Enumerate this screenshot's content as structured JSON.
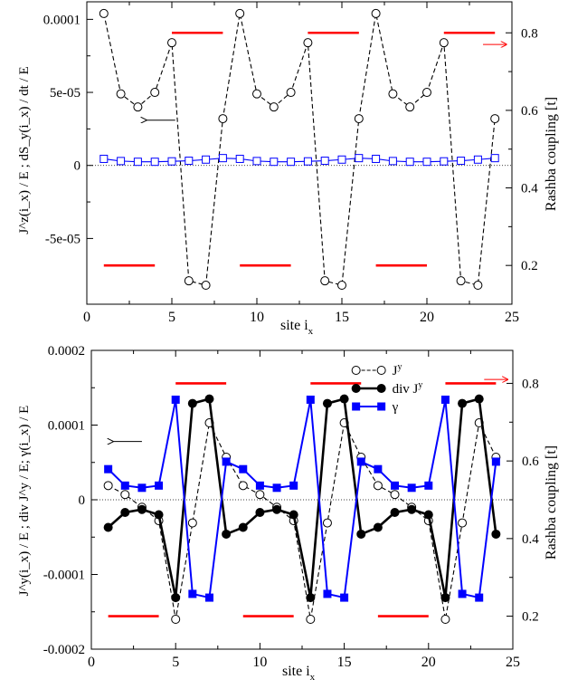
{
  "chart_data": [
    {
      "type": "line",
      "xlabel": "site i",
      "xlabel_sub": "x",
      "ylabel_left": "J^z(i_x) / E ; dS_y(i_x) / dt / E",
      "ylabel_right": "Rashba coupling [t]",
      "xlim": [
        0,
        25
      ],
      "ylim_left": [
        -9.5e-05,
        0.000112
      ],
      "ylim_right": [
        0.1,
        0.88
      ],
      "x_ticks": [
        0,
        5,
        10,
        15,
        20,
        25
      ],
      "x_tick_labels": [
        "0",
        "5",
        "10",
        "15",
        "20",
        "25"
      ],
      "y_left_ticks": [
        -5e-05,
        0,
        5e-05,
        0.0001
      ],
      "y_left_tick_labels": [
        "-5e-05",
        "0",
        "5e-05",
        "0.0001"
      ],
      "y_right_ticks": [
        0.2,
        0.4,
        0.6,
        0.8
      ],
      "y_right_tick_labels": [
        "0.2",
        "0.4",
        "0.6",
        "0.8"
      ],
      "zero_line": true,
      "grid": false,
      "legend": "none",
      "series": [
        {
          "style": "dashed-black-open-circle",
          "color": "#000000",
          "x": [
            1,
            2,
            3,
            4,
            5,
            6,
            7,
            8,
            9,
            10,
            11,
            12,
            13,
            14,
            15,
            16,
            17,
            18,
            19,
            20,
            21,
            22,
            23,
            24
          ],
          "values": [
            0.000104,
            4.9e-05,
            4e-05,
            5e-05,
            8.4e-05,
            -7.9e-05,
            -8.2e-05,
            3.2e-05,
            0.000104,
            4.9e-05,
            4e-05,
            5e-05,
            8.4e-05,
            -7.9e-05,
            -8.2e-05,
            3.2e-05,
            0.000104,
            4.9e-05,
            4e-05,
            5e-05,
            8.4e-05,
            -7.9e-05,
            -8.2e-05,
            3.2e-05
          ]
        },
        {
          "style": "solid-blue-open-square",
          "color": "#0000ff",
          "x": [
            1,
            2,
            3,
            4,
            5,
            6,
            7,
            8,
            9,
            10,
            11,
            12,
            13,
            14,
            15,
            16,
            17,
            18,
            19,
            20,
            21,
            22,
            23,
            24
          ],
          "values": [
            4.5e-06,
            3e-06,
            2.5e-06,
            2.5e-06,
            2.8e-06,
            3.2e-06,
            4e-06,
            5e-06,
            4.5e-06,
            3e-06,
            2.5e-06,
            2.5e-06,
            2.8e-06,
            3.2e-06,
            4e-06,
            5e-06,
            4.5e-06,
            3e-06,
            2.5e-06,
            2.5e-06,
            2.8e-06,
            3.2e-06,
            4e-06,
            5e-06
          ]
        }
      ],
      "rashba_segments": [
        {
          "x": [
            1,
            4
          ],
          "value": 0.2
        },
        {
          "x": [
            5,
            8
          ],
          "value": 0.8
        },
        {
          "x": [
            9,
            12
          ],
          "value": 0.2
        },
        {
          "x": [
            13,
            16
          ],
          "value": 0.8
        },
        {
          "x": [
            17,
            20
          ],
          "value": 0.2
        },
        {
          "x": [
            21,
            24
          ],
          "value": 0.8
        }
      ],
      "rashba_color": "#ff0000",
      "arrows": [
        {
          "points_to": "left-axis",
          "color": "#000000",
          "at": [
            5.2,
            3.1e-05
          ]
        },
        {
          "points_to": "right-axis",
          "color": "#ff0000",
          "at": [
            23.3,
            0.77
          ]
        }
      ]
    },
    {
      "type": "line",
      "xlabel": "site i",
      "xlabel_sub": "x",
      "ylabel_left": "J^y(i_x) / E ; div J^y / E; γ(i_x) / E",
      "ylabel_right": "Rashba coupling [t]",
      "xlim": [
        0,
        25
      ],
      "ylim_left": [
        -0.0002,
        0.0002
      ],
      "ylim_right": [
        0.115,
        0.885
      ],
      "x_ticks": [
        0,
        5,
        10,
        15,
        20,
        25
      ],
      "x_tick_labels": [
        "0",
        "5",
        "10",
        "15",
        "20",
        "25"
      ],
      "y_left_ticks": [
        -0.0002,
        -0.0001,
        0,
        0.0001,
        0.0002
      ],
      "y_left_tick_labels": [
        "-0.0002",
        "-0.0001",
        "0",
        "0.0001",
        "0.0002"
      ],
      "y_right_ticks": [
        0.2,
        0.4,
        0.6,
        0.8
      ],
      "y_right_tick_labels": [
        "0.2",
        "0.4",
        "0.6",
        "0.8"
      ],
      "zero_line": true,
      "grid": false,
      "legend": "top-right",
      "series": [
        {
          "name": "J",
          "name_sup": "y",
          "style": "dashed-black-open-circle",
          "color": "#000000",
          "x": [
            1,
            2,
            3,
            4,
            5,
            6,
            7,
            8,
            9,
            10,
            11,
            12,
            13,
            14,
            15,
            16,
            17,
            18,
            19,
            20,
            21,
            22,
            23,
            24
          ],
          "values": [
            1.9e-05,
            7e-06,
            -1e-05,
            -2.8e-05,
            -0.00016,
            -3.1e-05,
            0.000103,
            5.7e-05,
            1.9e-05,
            7e-06,
            -1e-05,
            -2.8e-05,
            -0.00016,
            -3.1e-05,
            0.000103,
            5.7e-05,
            1.9e-05,
            7e-06,
            -1e-05,
            -2.8e-05,
            -0.00016,
            -3.1e-05,
            0.000103,
            5.7e-05
          ]
        },
        {
          "name": "div J",
          "name_sup": "y",
          "style": "solid-black-filled-circle",
          "color": "#000000",
          "x": [
            1,
            2,
            3,
            4,
            5,
            6,
            7,
            8,
            9,
            10,
            11,
            12,
            13,
            14,
            15,
            16,
            17,
            18,
            19,
            20,
            21,
            22,
            23,
            24
          ],
          "values": [
            -3.7e-05,
            -1.7e-05,
            -1.3e-05,
            -2e-05,
            -0.000131,
            0.000129,
            0.000135,
            -4.6e-05,
            -3.7e-05,
            -1.7e-05,
            -1.3e-05,
            -2e-05,
            -0.000131,
            0.000129,
            0.000135,
            -4.6e-05,
            -3.7e-05,
            -1.7e-05,
            -1.3e-05,
            -2e-05,
            -0.000131,
            0.000129,
            0.000135,
            -4.6e-05
          ]
        },
        {
          "name": "γ",
          "name_sup": "",
          "style": "solid-blue-filled-square",
          "color": "#0000ff",
          "x": [
            1,
            2,
            3,
            4,
            5,
            6,
            7,
            8,
            9,
            10,
            11,
            12,
            13,
            14,
            15,
            16,
            17,
            18,
            19,
            20,
            21,
            22,
            23,
            24
          ],
          "values": [
            4.1e-05,
            1.9e-05,
            1.6e-05,
            1.9e-05,
            0.000134,
            -0.000126,
            -0.000131,
            5.1e-05,
            4.1e-05,
            1.9e-05,
            1.6e-05,
            1.9e-05,
            0.000134,
            -0.000126,
            -0.000131,
            5.1e-05,
            4.1e-05,
            1.9e-05,
            1.6e-05,
            1.9e-05,
            0.000134,
            -0.000126,
            -0.000131,
            5.1e-05
          ]
        }
      ],
      "rashba_segments": [
        {
          "x": [
            1,
            4
          ],
          "value": 0.2
        },
        {
          "x": [
            5,
            8
          ],
          "value": 0.8
        },
        {
          "x": [
            9,
            12
          ],
          "value": 0.2
        },
        {
          "x": [
            13,
            16
          ],
          "value": 0.8
        },
        {
          "x": [
            17,
            20
          ],
          "value": 0.2
        },
        {
          "x": [
            21,
            24
          ],
          "value": 0.8
        }
      ],
      "rashba_color": "#ff0000",
      "arrows": [
        {
          "points_to": "left-axis",
          "color": "#000000",
          "at": [
            3.0,
            7.8e-05
          ]
        },
        {
          "points_to": "right-axis",
          "color": "#ff0000",
          "at": [
            23.3,
            0.81
          ]
        }
      ]
    }
  ]
}
